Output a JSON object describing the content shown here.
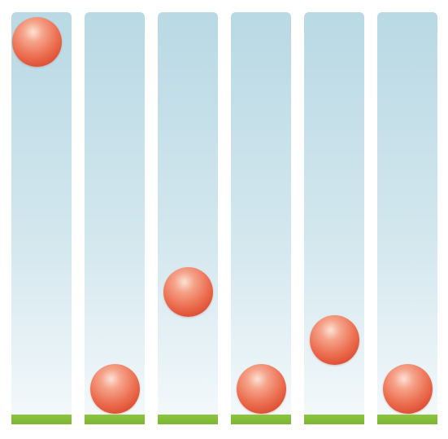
{
  "colors": {
    "lane_top": "#b9d9e4",
    "lane_bottom": "#f6fafc",
    "ground": "#8cc63e",
    "ball": "#ec6e50"
  },
  "lanes": [
    {
      "id": "lane-1",
      "ball_height_fraction": 1.0
    },
    {
      "id": "lane-2",
      "ball_height_fraction": 0.0
    },
    {
      "id": "lane-3",
      "ball_height_fraction": 0.28
    },
    {
      "id": "lane-4",
      "ball_height_fraction": 0.0
    },
    {
      "id": "lane-5",
      "ball_height_fraction": 0.14
    },
    {
      "id": "lane-6",
      "ball_height_fraction": 0.0
    }
  ]
}
